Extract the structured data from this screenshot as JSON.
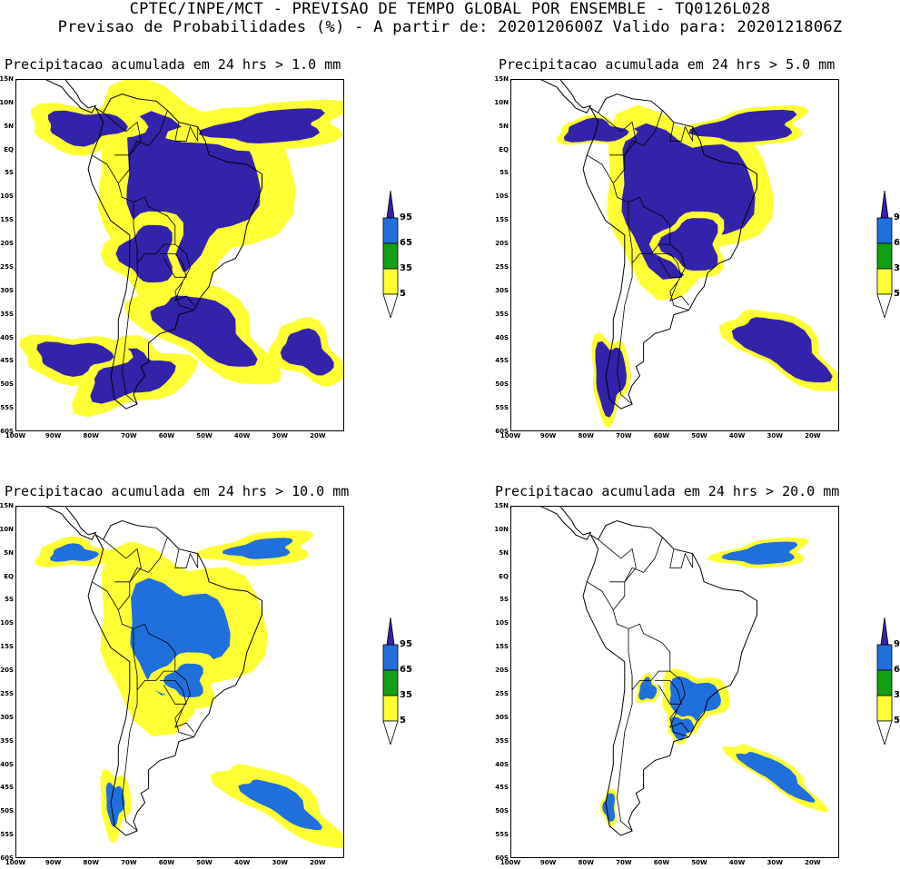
{
  "header": {
    "line1": "CPTEC/INPE/MCT - PREVISAO DE TEMPO GLOBAL POR ENSEMBLE - TQ0126L028",
    "line2": "Previsao de Probabilidades (%) -  A partir de: 2020120600Z  Valido para: 2020121806Z"
  },
  "panels": [
    {
      "title": "Precipitacao acumulada em 24 hrs > 1.0 mm"
    },
    {
      "title": "Precipitacao acumulada em 24 hrs > 5.0 mm"
    },
    {
      "title": "Precipitacao acumulada em 24 hrs > 10.0 mm"
    },
    {
      "title": "Precipitacao acumulada em 24 hrs > 20.0 mm"
    }
  ],
  "lat_labels": [
    "15N",
    "10N",
    "5N",
    "EQ",
    "5S",
    "10S",
    "15S",
    "20S",
    "25S",
    "30S",
    "35S",
    "40S",
    "45S",
    "50S",
    "55S",
    "60S"
  ],
  "lon_labels": [
    "100W",
    "90W",
    "80W",
    "70W",
    "60W",
    "50W",
    "40W",
    "30W",
    "20W"
  ],
  "colorbar": {
    "levels": [
      "95",
      "65",
      "35",
      "5"
    ],
    "colors": {
      "c95": "#3322aa",
      "c65": "#1f6fdc",
      "c35": "#13a013",
      "c5": "#ffff33"
    }
  }
}
